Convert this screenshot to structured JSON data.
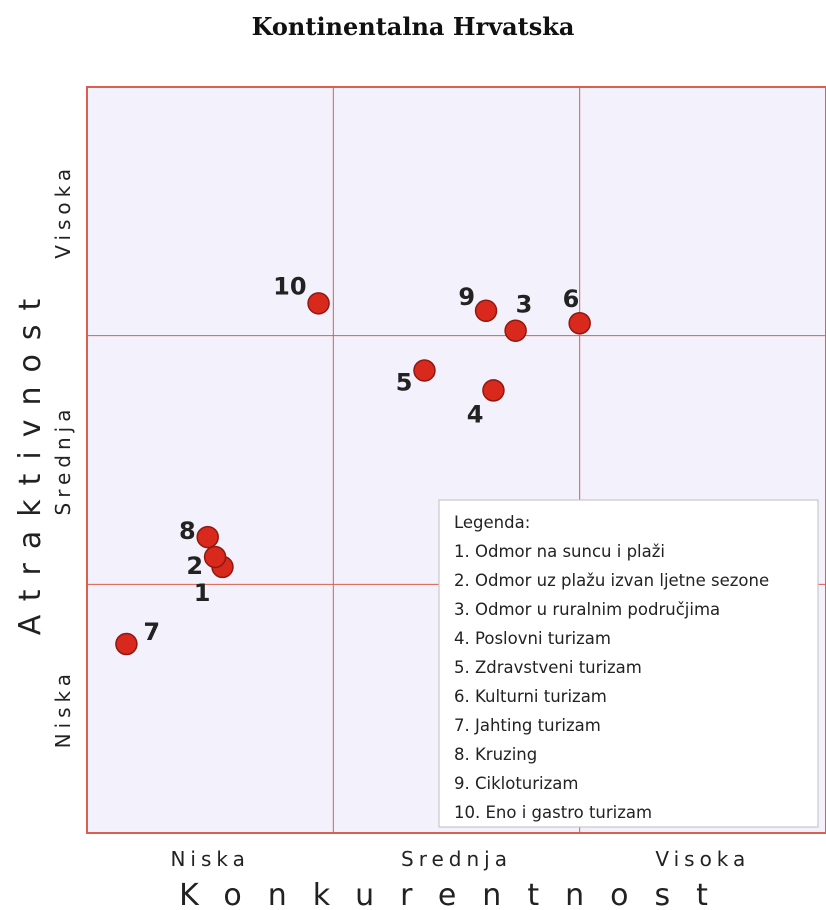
{
  "chart_data": {
    "type": "scatter",
    "title": "Kontinentalna Hrvatska",
    "xlabel": "Konkurentnost",
    "ylabel": "Atraktivnost",
    "x_levels": [
      "Niska",
      "Srednja",
      "Visoka"
    ],
    "y_levels": [
      "Niska",
      "Srednja",
      "Visoka"
    ],
    "xlim": [
      0,
      3
    ],
    "ylim": [
      0,
      3
    ],
    "grid": true,
    "legend_position": "bottom-right",
    "legend_title": "Legenda:",
    "legend_items": [
      "1. Odmor na suncu i plaži",
      "2. Odmor uz plažu izvan ljetne sezone",
      "3. Odmor u ruralnim područjima",
      "4. Poslovni turizam",
      "5. Zdravstveni turizam",
      "6. Kulturni turizam",
      "7. Jahting turizam",
      "8. Kruzing",
      "9. Cikloturizam",
      "10. Eno i gastro turizam"
    ],
    "points": [
      {
        "label": "1",
        "x": 0.55,
        "y": 1.07
      },
      {
        "label": "2",
        "x": 0.52,
        "y": 1.11
      },
      {
        "label": "3",
        "x": 1.74,
        "y": 2.02
      },
      {
        "label": "4",
        "x": 1.65,
        "y": 1.78
      },
      {
        "label": "5",
        "x": 1.37,
        "y": 1.86
      },
      {
        "label": "6",
        "x": 2.0,
        "y": 2.05
      },
      {
        "label": "7",
        "x": 0.16,
        "y": 0.76
      },
      {
        "label": "8",
        "x": 0.49,
        "y": 1.19
      },
      {
        "label": "9",
        "x": 1.62,
        "y": 2.1
      },
      {
        "label": "10",
        "x": 0.94,
        "y": 2.13
      }
    ],
    "point_color": "#d9291c"
  }
}
